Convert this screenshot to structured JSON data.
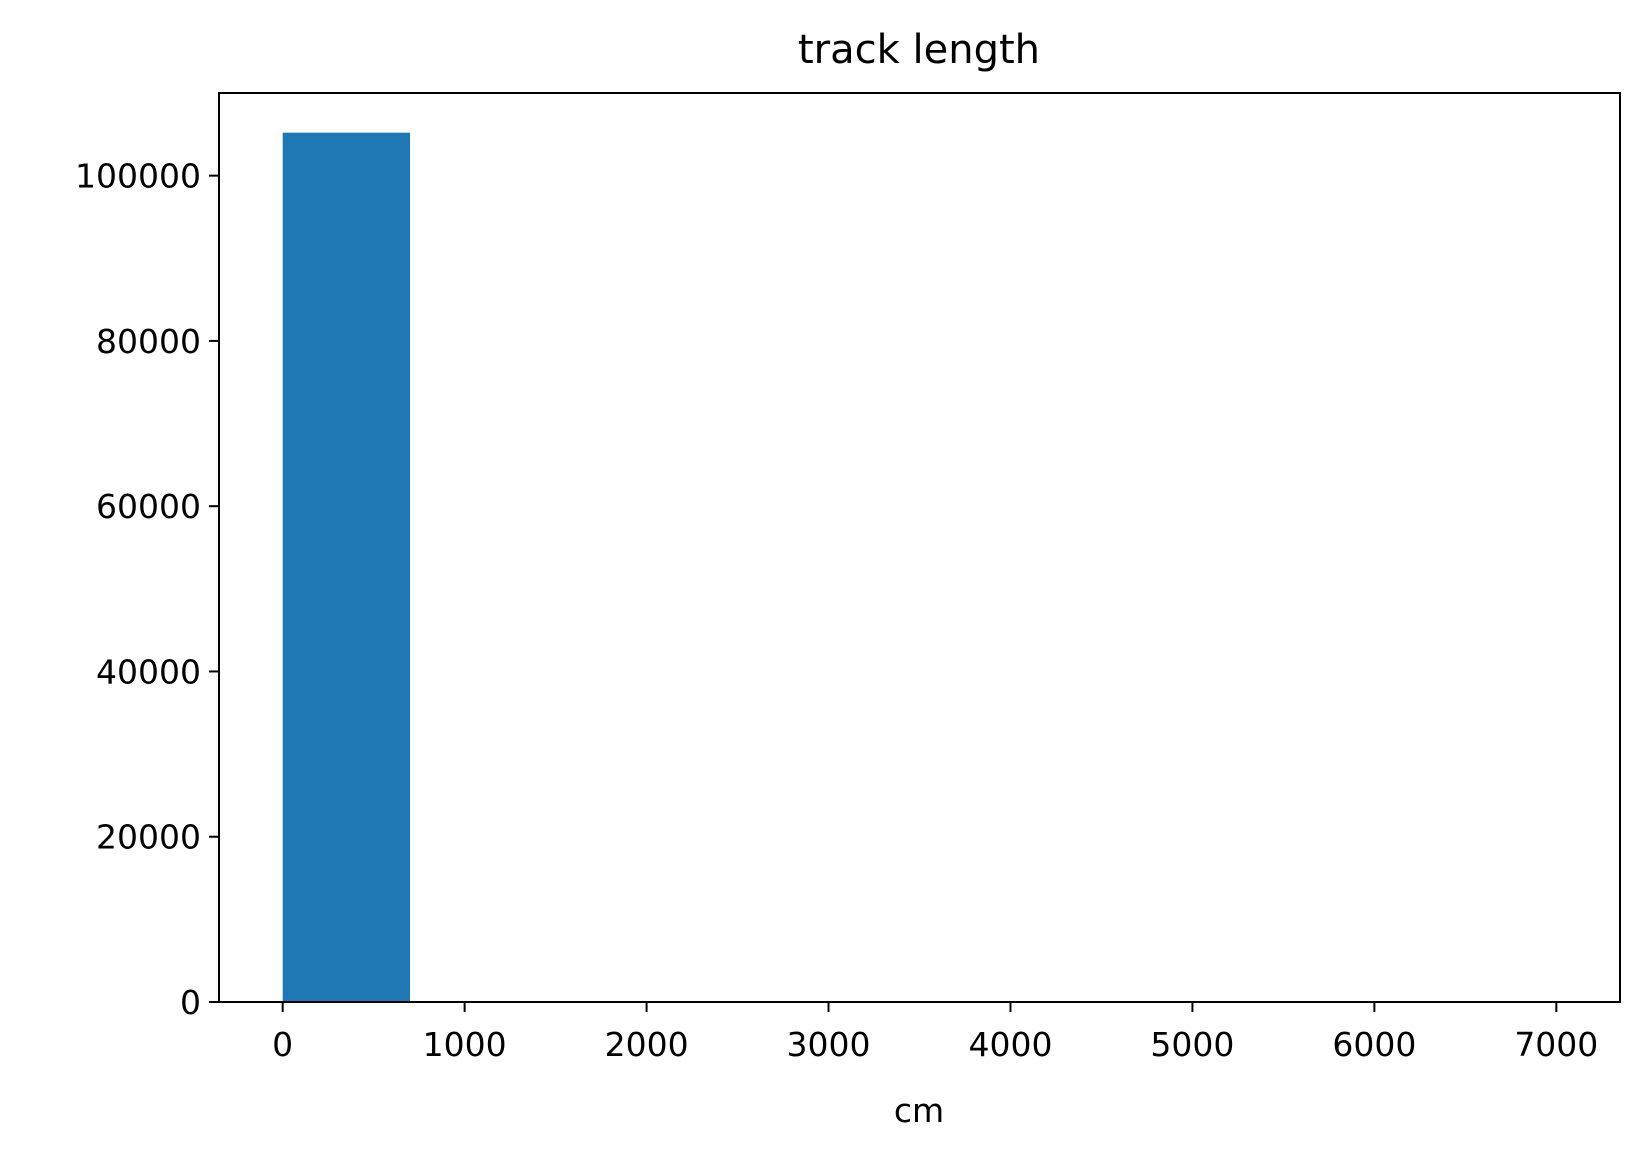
{
  "chart_data": {
    "type": "bar",
    "title": "track length",
    "xlabel": "cm",
    "ylabel": "",
    "xlim": [
      -350,
      7350
    ],
    "ylim": [
      0,
      110000
    ],
    "x_ticks": [
      0,
      1000,
      2000,
      3000,
      4000,
      5000,
      6000,
      7000
    ],
    "y_ticks": [
      0,
      20000,
      40000,
      60000,
      80000,
      100000
    ],
    "grid": false,
    "bar_color": "#1f77b4",
    "bins": [
      {
        "x0": 0,
        "x1": 700,
        "value": 105200
      },
      {
        "x0": 700,
        "x1": 1400,
        "value": 0
      },
      {
        "x0": 1400,
        "x1": 2100,
        "value": 0
      },
      {
        "x0": 2100,
        "x1": 2800,
        "value": 0
      },
      {
        "x0": 2800,
        "x1": 3500,
        "value": 0
      },
      {
        "x0": 3500,
        "x1": 4200,
        "value": 0
      },
      {
        "x0": 4200,
        "x1": 4900,
        "value": 0
      },
      {
        "x0": 4900,
        "x1": 5600,
        "value": 0
      },
      {
        "x0": 5600,
        "x1": 6300,
        "value": 0
      },
      {
        "x0": 6300,
        "x1": 7000,
        "value": 0
      }
    ]
  }
}
